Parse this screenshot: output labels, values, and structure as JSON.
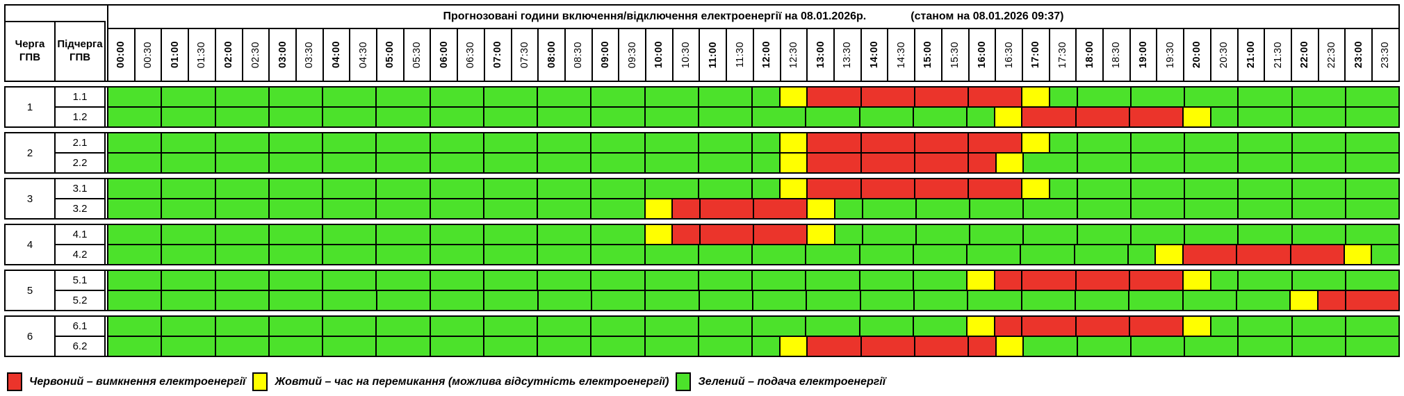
{
  "title": {
    "main": "Прогнозовані години включення/відключення електроенергії на 08.01.2026р.",
    "asof": "(станом на 08.01.2026 09:37)"
  },
  "header": {
    "queue": "Черга\nГПВ",
    "subqueue": "Підчерга\nГПВ"
  },
  "time_slots": [
    "00:00",
    "00:30",
    "01:00",
    "01:30",
    "02:00",
    "02:30",
    "03:00",
    "03:30",
    "04:00",
    "04:30",
    "05:00",
    "05:30",
    "06:00",
    "06:30",
    "07:00",
    "07:30",
    "08:00",
    "08:30",
    "09:00",
    "09:30",
    "10:00",
    "10:30",
    "11:00",
    "11:30",
    "12:00",
    "12:30",
    "13:00",
    "13:30",
    "14:00",
    "14:30",
    "15:00",
    "15:30",
    "16:00",
    "16:30",
    "17:00",
    "17:30",
    "18:00",
    "18:30",
    "19:00",
    "19:30",
    "20:00",
    "20:30",
    "21:00",
    "21:30",
    "22:00",
    "22:30",
    "23:00",
    "23:30"
  ],
  "colors": {
    "G": "#4CE22B",
    "Y": "#FFFF00",
    "R": "#EB342B"
  },
  "color_meaning": {
    "G": "подача електроенергії",
    "Y": "час на перемикання",
    "R": "вимкнення електроенергії"
  },
  "groups": [
    {
      "queue": "1",
      "rows": [
        {
          "label": "1.1",
          "segments": [
            [
              "G",
              25
            ],
            [
              "Y",
              1
            ],
            [
              "R",
              8
            ],
            [
              "Y",
              1
            ],
            [
              "G",
              13
            ]
          ]
        },
        {
          "label": "1.2",
          "segments": [
            [
              "G",
              33
            ],
            [
              "Y",
              1
            ],
            [
              "R",
              6
            ],
            [
              "Y",
              1
            ],
            [
              "G",
              7
            ]
          ]
        }
      ]
    },
    {
      "queue": "2",
      "rows": [
        {
          "label": "2.1",
          "segments": [
            [
              "G",
              25
            ],
            [
              "Y",
              1
            ],
            [
              "R",
              8
            ],
            [
              "Y",
              1
            ],
            [
              "G",
              13
            ]
          ]
        },
        {
          "label": "2.2",
          "segments": [
            [
              "G",
              25
            ],
            [
              "Y",
              1
            ],
            [
              "R",
              7
            ],
            [
              "Y",
              1
            ],
            [
              "G",
              14
            ]
          ]
        }
      ]
    },
    {
      "queue": "3",
      "rows": [
        {
          "label": "3.1",
          "segments": [
            [
              "G",
              25
            ],
            [
              "Y",
              1
            ],
            [
              "R",
              8
            ],
            [
              "Y",
              1
            ],
            [
              "G",
              13
            ]
          ]
        },
        {
          "label": "3.2",
          "segments": [
            [
              "G",
              20
            ],
            [
              "Y",
              1
            ],
            [
              "R",
              5
            ],
            [
              "Y",
              1
            ],
            [
              "G",
              21
            ]
          ]
        }
      ]
    },
    {
      "queue": "4",
      "rows": [
        {
          "label": "4.1",
          "segments": [
            [
              "G",
              20
            ],
            [
              "Y",
              1
            ],
            [
              "R",
              5
            ],
            [
              "Y",
              1
            ],
            [
              "G",
              21
            ]
          ]
        },
        {
          "label": "4.2",
          "segments": [
            [
              "G",
              39
            ],
            [
              "Y",
              1
            ],
            [
              "R",
              6
            ],
            [
              "Y",
              1
            ],
            [
              "G",
              1
            ]
          ]
        }
      ]
    },
    {
      "queue": "5",
      "rows": [
        {
          "label": "5.1",
          "segments": [
            [
              "G",
              32
            ],
            [
              "Y",
              1
            ],
            [
              "R",
              7
            ],
            [
              "Y",
              1
            ],
            [
              "G",
              7
            ]
          ]
        },
        {
          "label": "5.2",
          "segments": [
            [
              "G",
              44
            ],
            [
              "Y",
              1
            ],
            [
              "R",
              3
            ]
          ]
        }
      ]
    },
    {
      "queue": "6",
      "rows": [
        {
          "label": "6.1",
          "segments": [
            [
              "G",
              32
            ],
            [
              "Y",
              1
            ],
            [
              "R",
              7
            ],
            [
              "Y",
              1
            ],
            [
              "G",
              7
            ]
          ]
        },
        {
          "label": "6.2",
          "segments": [
            [
              "G",
              25
            ],
            [
              "Y",
              1
            ],
            [
              "R",
              7
            ],
            [
              "Y",
              1
            ],
            [
              "G",
              14
            ]
          ]
        }
      ]
    }
  ],
  "legend": [
    {
      "key": "R",
      "label": "Червоний – вимкнення електроенергії"
    },
    {
      "key": "Y",
      "label": "Жовтий – час на перемикання (можлива відсутність електроенергії)"
    },
    {
      "key": "G",
      "label": "Зелений – подача електроенергії"
    }
  ]
}
